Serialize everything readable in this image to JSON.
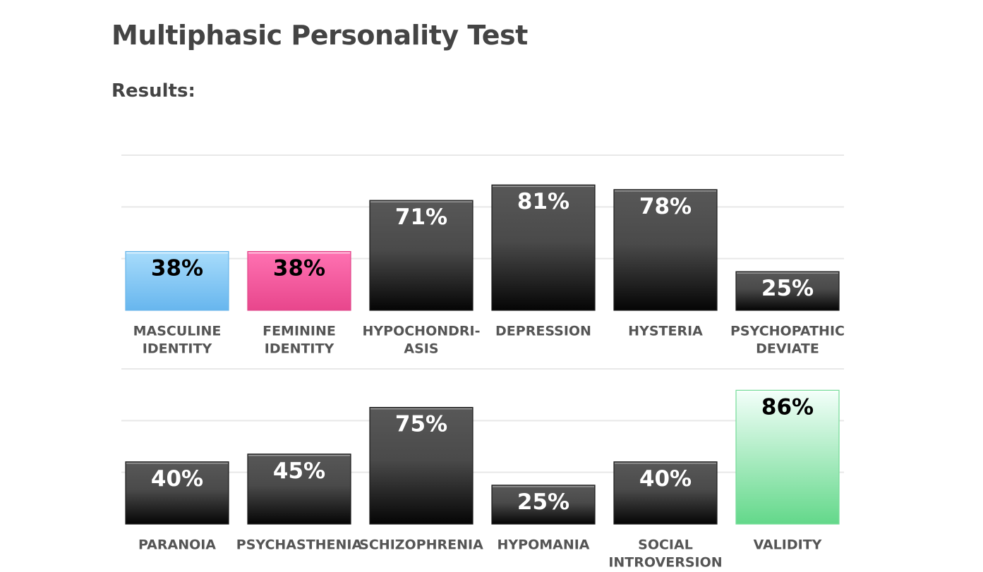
{
  "page": {
    "title": "Multiphasic Personality Test",
    "results_heading": "Results:"
  },
  "chart_data": [
    {
      "type": "bar",
      "categories": [
        [
          "MASCULINE",
          "IDENTITY"
        ],
        [
          "FEMININE",
          "IDENTITY"
        ],
        [
          "HYPOCHONDRI-",
          "ASIS"
        ],
        [
          "DEPRESSION"
        ],
        [
          "HYSTERIA"
        ],
        [
          "PSYCHOPATHIC",
          "DEVIATE"
        ]
      ],
      "values": [
        38,
        38,
        71,
        81,
        78,
        25
      ],
      "value_labels": [
        "38%",
        "38%",
        "71%",
        "81%",
        "78%",
        "25%"
      ],
      "styles": [
        "blue",
        "pink",
        "dark",
        "dark",
        "dark",
        "dark"
      ],
      "ylim": [
        0,
        100
      ],
      "grid": true
    },
    {
      "type": "bar",
      "categories": [
        [
          "PARANOIA"
        ],
        [
          "PSYCHASTHENIA"
        ],
        [
          "SCHIZOPHRENIA"
        ],
        [
          "HYPOMANIA"
        ],
        [
          "SOCIAL",
          "INTROVERSION"
        ],
        [
          "VALIDITY"
        ]
      ],
      "values": [
        40,
        45,
        75,
        25,
        40,
        86
      ],
      "value_labels": [
        "40%",
        "45%",
        "75%",
        "25%",
        "40%",
        "86%"
      ],
      "styles": [
        "dark",
        "dark",
        "dark",
        "dark",
        "dark",
        "green"
      ],
      "ylim": [
        0,
        100
      ],
      "grid": true
    }
  ],
  "colors": {
    "dark_top": "#585858",
    "dark_bottom": "#050505",
    "blue_top": "#a8dcfb",
    "blue_bottom": "#67b6ee",
    "pink_top": "#ff72b2",
    "pink_bottom": "#e8468c",
    "green_top": "#f3fffa",
    "green_bottom": "#63d88a",
    "label_light": "#ffffff",
    "label_dark": "#000000"
  }
}
